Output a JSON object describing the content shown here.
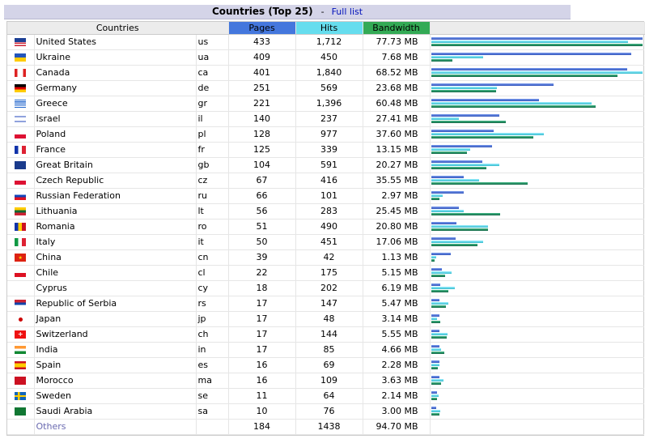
{
  "header": {
    "title": "Countries (Top 25)",
    "separator": "-",
    "full_list_link": "Full list"
  },
  "columns": {
    "countries": "Countries",
    "pages": "Pages",
    "hits": "Hits",
    "bandwidth": "Bandwidth"
  },
  "colors": {
    "pages": "#4477dd",
    "hits": "#66ddee",
    "bandwidth": "#33aa55"
  },
  "max": {
    "pages": 433,
    "hits": 1840,
    "bandwidth": 77.73
  },
  "rows": [
    {
      "flag": "us-flag-icon",
      "name": "United States",
      "code": "us",
      "pages": "433",
      "hits": "1,712",
      "bandwidth": "77.73 MB",
      "p": 433,
      "h": 1712,
      "b": 77.73
    },
    {
      "flag": "ua-flag-icon",
      "name": "Ukraine",
      "code": "ua",
      "pages": "409",
      "hits": "450",
      "bandwidth": "7.68 MB",
      "p": 409,
      "h": 450,
      "b": 7.68
    },
    {
      "flag": "ca-flag-icon",
      "name": "Canada",
      "code": "ca",
      "pages": "401",
      "hits": "1,840",
      "bandwidth": "68.52 MB",
      "p": 401,
      "h": 1840,
      "b": 68.52
    },
    {
      "flag": "de-flag-icon",
      "name": "Germany",
      "code": "de",
      "pages": "251",
      "hits": "569",
      "bandwidth": "23.68 MB",
      "p": 251,
      "h": 569,
      "b": 23.68
    },
    {
      "flag": "gr-flag-icon",
      "name": "Greece",
      "code": "gr",
      "pages": "221",
      "hits": "1,396",
      "bandwidth": "60.48 MB",
      "p": 221,
      "h": 1396,
      "b": 60.48
    },
    {
      "flag": "il-flag-icon",
      "name": "Israel",
      "code": "il",
      "pages": "140",
      "hits": "237",
      "bandwidth": "27.41 MB",
      "p": 140,
      "h": 237,
      "b": 27.41
    },
    {
      "flag": "pl-flag-icon",
      "name": "Poland",
      "code": "pl",
      "pages": "128",
      "hits": "977",
      "bandwidth": "37.60 MB",
      "p": 128,
      "h": 977,
      "b": 37.6
    },
    {
      "flag": "fr-flag-icon",
      "name": "France",
      "code": "fr",
      "pages": "125",
      "hits": "339",
      "bandwidth": "13.15 MB",
      "p": 125,
      "h": 339,
      "b": 13.15
    },
    {
      "flag": "gb-flag-icon",
      "name": "Great Britain",
      "code": "gb",
      "pages": "104",
      "hits": "591",
      "bandwidth": "20.27 MB",
      "p": 104,
      "h": 591,
      "b": 20.27
    },
    {
      "flag": "cz-flag-icon",
      "name": "Czech Republic",
      "code": "cz",
      "pages": "67",
      "hits": "416",
      "bandwidth": "35.55 MB",
      "p": 67,
      "h": 416,
      "b": 35.55
    },
    {
      "flag": "ru-flag-icon",
      "name": "Russian Federation",
      "code": "ru",
      "pages": "66",
      "hits": "101",
      "bandwidth": "2.97 MB",
      "p": 66,
      "h": 101,
      "b": 2.97
    },
    {
      "flag": "lt-flag-icon",
      "name": "Lithuania",
      "code": "lt",
      "pages": "56",
      "hits": "283",
      "bandwidth": "25.45 MB",
      "p": 56,
      "h": 283,
      "b": 25.45
    },
    {
      "flag": "ro-flag-icon",
      "name": "Romania",
      "code": "ro",
      "pages": "51",
      "hits": "490",
      "bandwidth": "20.80 MB",
      "p": 51,
      "h": 490,
      "b": 20.8
    },
    {
      "flag": "it-flag-icon",
      "name": "Italy",
      "code": "it",
      "pages": "50",
      "hits": "451",
      "bandwidth": "17.06 MB",
      "p": 50,
      "h": 451,
      "b": 17.06
    },
    {
      "flag": "cn-flag-icon",
      "name": "China",
      "code": "cn",
      "pages": "39",
      "hits": "42",
      "bandwidth": "1.13 MB",
      "p": 39,
      "h": 42,
      "b": 1.13
    },
    {
      "flag": "cl-flag-icon",
      "name": "Chile",
      "code": "cl",
      "pages": "22",
      "hits": "175",
      "bandwidth": "5.15 MB",
      "p": 22,
      "h": 175,
      "b": 5.15
    },
    {
      "flag": "cy-flag-icon",
      "name": "Cyprus",
      "code": "cy",
      "pages": "18",
      "hits": "202",
      "bandwidth": "6.19 MB",
      "p": 18,
      "h": 202,
      "b": 6.19
    },
    {
      "flag": "rs-flag-icon",
      "name": "Republic of Serbia",
      "code": "rs",
      "pages": "17",
      "hits": "147",
      "bandwidth": "5.47 MB",
      "p": 17,
      "h": 147,
      "b": 5.47
    },
    {
      "flag": "jp-flag-icon",
      "name": "Japan",
      "code": "jp",
      "pages": "17",
      "hits": "48",
      "bandwidth": "3.14 MB",
      "p": 17,
      "h": 48,
      "b": 3.14
    },
    {
      "flag": "ch-flag-icon",
      "name": "Switzerland",
      "code": "ch",
      "pages": "17",
      "hits": "144",
      "bandwidth": "5.55 MB",
      "p": 17,
      "h": 144,
      "b": 5.55
    },
    {
      "flag": "in-flag-icon",
      "name": "India",
      "code": "in",
      "pages": "17",
      "hits": "85",
      "bandwidth": "4.66 MB",
      "p": 17,
      "h": 85,
      "b": 4.66
    },
    {
      "flag": "es-flag-icon",
      "name": "Spain",
      "code": "es",
      "pages": "16",
      "hits": "69",
      "bandwidth": "2.28 MB",
      "p": 16,
      "h": 69,
      "b": 2.28
    },
    {
      "flag": "ma-flag-icon",
      "name": "Morocco",
      "code": "ma",
      "pages": "16",
      "hits": "109",
      "bandwidth": "3.63 MB",
      "p": 16,
      "h": 109,
      "b": 3.63
    },
    {
      "flag": "se-flag-icon",
      "name": "Sweden",
      "code": "se",
      "pages": "11",
      "hits": "64",
      "bandwidth": "2.14 MB",
      "p": 11,
      "h": 64,
      "b": 2.14
    },
    {
      "flag": "sa-flag-icon",
      "name": "Saudi Arabia",
      "code": "sa",
      "pages": "10",
      "hits": "76",
      "bandwidth": "3.00 MB",
      "p": 10,
      "h": 76,
      "b": 3.0
    }
  ],
  "others": {
    "name": "Others",
    "pages": "184",
    "hits": "1438",
    "bandwidth": "94.70 MB"
  }
}
